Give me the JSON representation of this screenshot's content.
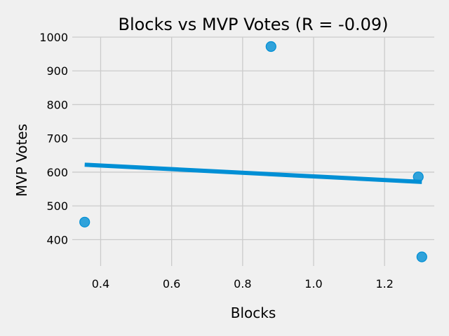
{
  "chart_data": {
    "type": "scatter",
    "title": "Blocks vs MVP Votes (R = -0.09)",
    "xlabel": "Blocks",
    "ylabel": "MVP Votes",
    "xlim": [
      0.32,
      1.34
    ],
    "ylim": [
      322,
      1000
    ],
    "xticks": [
      0.4,
      0.6,
      0.8,
      1.0,
      1.2
    ],
    "xtick_labels": [
      "0.4",
      "0.6",
      "0.8",
      "1.0",
      "1.2"
    ],
    "yticks": [
      400,
      500,
      600,
      700,
      800,
      900,
      1000
    ],
    "ytick_labels": [
      "400",
      "500",
      "600",
      "700",
      "800",
      "900",
      "1000"
    ],
    "points": [
      {
        "x": 0.355,
        "y": 452
      },
      {
        "x": 0.88,
        "y": 972
      },
      {
        "x": 1.295,
        "y": 586
      },
      {
        "x": 1.305,
        "y": 349
      }
    ],
    "trendline": {
      "x": [
        0.355,
        1.305
      ],
      "y": [
        622,
        571
      ]
    },
    "grid": true,
    "colors": {
      "series": "#008fd5",
      "background": "#f0f0f0",
      "grid": "#cbcbcb"
    }
  }
}
